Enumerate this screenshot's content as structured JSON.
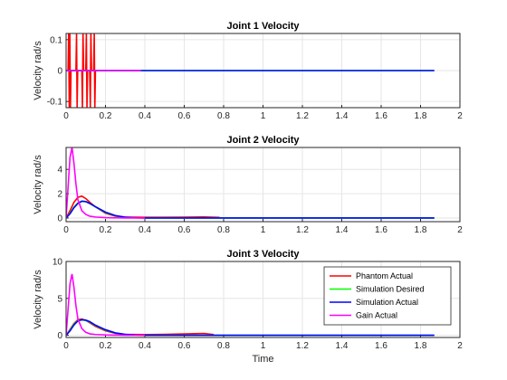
{
  "chart_data": [
    {
      "type": "line",
      "title": "Joint 1 Velocity",
      "xlabel": "",
      "ylabel": "Velocity rad/s",
      "xlim": [
        0,
        2
      ],
      "ylim": [
        -0.12,
        0.12
      ],
      "xticks": [
        "0",
        "0.2",
        "0.4",
        "0.6",
        "0.8",
        "1",
        "1.2",
        "1.4",
        "1.6",
        "1.8",
        "2"
      ],
      "yticks": [
        {
          "value": -0.1,
          "label": "-0.1"
        },
        {
          "value": 0,
          "label": "0"
        },
        {
          "value": 0.1,
          "label": "0.1"
        }
      ],
      "grid": true,
      "series": [
        {
          "name": "Phantom Actual",
          "color": "#ff0000",
          "x": [
            0,
            0.01,
            0.013,
            0.016,
            0.019,
            0.022,
            0.025,
            0.05,
            0.053,
            0.056,
            0.059,
            0.08,
            0.083,
            0.086,
            0.089,
            0.1,
            0.103,
            0.106,
            0.109,
            0.12,
            0.123,
            0.126,
            0.129,
            0.14,
            0.143,
            0.146,
            0.149,
            0.16
          ],
          "y": [
            0,
            0,
            0.12,
            -0.12,
            0.12,
            -0.12,
            0,
            0,
            0.12,
            -0.12,
            0,
            0,
            -0.12,
            0.12,
            0,
            0,
            0.12,
            -0.12,
            0,
            0,
            -0.12,
            0.12,
            0,
            0,
            0.12,
            -0.12,
            0,
            0
          ]
        },
        {
          "name": "Simulation Desired",
          "color": "#00ff00",
          "x": [
            0,
            1.87
          ],
          "y": [
            0,
            0
          ]
        },
        {
          "name": "Simulation Actual",
          "color": "#0000ff",
          "x": [
            0,
            1.87
          ],
          "y": [
            0,
            0
          ]
        },
        {
          "name": "Gain Actual",
          "color": "#ff00ff",
          "x": [
            0,
            0.38
          ],
          "y": [
            0,
            0
          ]
        }
      ]
    },
    {
      "type": "line",
      "title": "Joint 2 Velocity",
      "xlabel": "",
      "ylabel": "Velocity rad/s",
      "xlim": [
        0,
        2
      ],
      "ylim": [
        -0.3,
        5.8
      ],
      "xticks": [
        "0",
        "0.2",
        "0.4",
        "0.6",
        "0.8",
        "1",
        "1.2",
        "1.4",
        "1.6",
        "1.8",
        "2"
      ],
      "yticks": [
        {
          "value": 0,
          "label": "0"
        },
        {
          "value": 2,
          "label": "2"
        },
        {
          "value": 4,
          "label": "4"
        }
      ],
      "grid": true,
      "series": [
        {
          "name": "Phantom Actual",
          "color": "#ff0000",
          "x": [
            0,
            0.02,
            0.04,
            0.06,
            0.08,
            0.1,
            0.12,
            0.15,
            0.2,
            0.25,
            0.3,
            0.4,
            0.5,
            0.6,
            0.7,
            0.78
          ],
          "y": [
            0,
            0.6,
            1.3,
            1.7,
            1.8,
            1.6,
            1.3,
            0.9,
            0.4,
            0.15,
            0.08,
            0.06,
            0.06,
            0.07,
            0.09,
            0.05
          ]
        },
        {
          "name": "Simulation Desired",
          "color": "#00ff00",
          "x": [
            0,
            0.02,
            0.04,
            0.06,
            0.08,
            0.1,
            0.12,
            0.15,
            0.2,
            0.25,
            0.3,
            0.35,
            0.4,
            1.87
          ],
          "y": [
            0,
            0.4,
            0.9,
            1.25,
            1.4,
            1.35,
            1.2,
            0.9,
            0.45,
            0.18,
            0.06,
            0.02,
            0,
            0
          ]
        },
        {
          "name": "Simulation Actual",
          "color": "#0000ff",
          "x": [
            0,
            0.02,
            0.04,
            0.06,
            0.08,
            0.1,
            0.12,
            0.15,
            0.2,
            0.25,
            0.3,
            0.35,
            0.4,
            1.87
          ],
          "y": [
            0,
            0.35,
            0.85,
            1.2,
            1.38,
            1.35,
            1.2,
            0.92,
            0.48,
            0.2,
            0.07,
            0.02,
            0,
            0
          ]
        },
        {
          "name": "Gain Actual",
          "color": "#ff00ff",
          "x": [
            0,
            0.01,
            0.02,
            0.03,
            0.04,
            0.05,
            0.06,
            0.08,
            0.1,
            0.12,
            0.15,
            0.2,
            0.3,
            0.4
          ],
          "y": [
            0,
            2.5,
            5.0,
            5.8,
            4.5,
            2.8,
            1.5,
            0.6,
            0.3,
            0.15,
            0.08,
            0.03,
            0,
            0
          ]
        }
      ]
    },
    {
      "type": "line",
      "title": "Joint 3 Velocity",
      "xlabel": "Time",
      "ylabel": "Velocity rad/s",
      "xlim": [
        0,
        2
      ],
      "ylim": [
        -0.3,
        10
      ],
      "xticks": [
        "0",
        "0.2",
        "0.4",
        "0.6",
        "0.8",
        "1",
        "1.2",
        "1.4",
        "1.6",
        "1.8",
        "2"
      ],
      "yticks": [
        {
          "value": 0,
          "label": "0"
        },
        {
          "value": 5,
          "label": "5"
        },
        {
          "value": 10,
          "label": "10"
        }
      ],
      "grid": true,
      "legend": "top-right",
      "series": [
        {
          "name": "Phantom Actual",
          "color": "#ff0000",
          "x": [
            0,
            0.02,
            0.04,
            0.06,
            0.08,
            0.1,
            0.12,
            0.15,
            0.2,
            0.25,
            0.3,
            0.4,
            0.5,
            0.6,
            0.7,
            0.75
          ],
          "y": [
            0,
            0.8,
            1.6,
            2.1,
            2.2,
            2.0,
            1.7,
            1.2,
            0.6,
            0.25,
            0.12,
            0.1,
            0.12,
            0.18,
            0.25,
            0.1
          ]
        },
        {
          "name": "Simulation Desired",
          "color": "#00ff00",
          "x": [
            0,
            0.02,
            0.04,
            0.06,
            0.08,
            0.1,
            0.12,
            0.15,
            0.2,
            0.25,
            0.3,
            0.35,
            0.4,
            1.87
          ],
          "y": [
            0,
            0.7,
            1.5,
            2.0,
            2.1,
            2.0,
            1.8,
            1.3,
            0.7,
            0.3,
            0.1,
            0.03,
            0,
            0
          ]
        },
        {
          "name": "Simulation Actual",
          "color": "#0000ff",
          "x": [
            0,
            0.02,
            0.04,
            0.06,
            0.08,
            0.1,
            0.12,
            0.15,
            0.2,
            0.25,
            0.3,
            0.35,
            0.4,
            1.87
          ],
          "y": [
            0,
            0.6,
            1.4,
            1.95,
            2.1,
            2.05,
            1.85,
            1.35,
            0.75,
            0.32,
            0.12,
            0.04,
            0,
            0
          ]
        },
        {
          "name": "Gain Actual",
          "color": "#ff00ff",
          "x": [
            0,
            0.01,
            0.02,
            0.03,
            0.04,
            0.05,
            0.06,
            0.08,
            0.1,
            0.12,
            0.15,
            0.2,
            0.3,
            0.4
          ],
          "y": [
            0,
            3.5,
            7.0,
            8.3,
            6.5,
            4.0,
            2.2,
            0.9,
            0.4,
            0.2,
            0.1,
            0.04,
            0,
            0
          ]
        }
      ]
    }
  ]
}
